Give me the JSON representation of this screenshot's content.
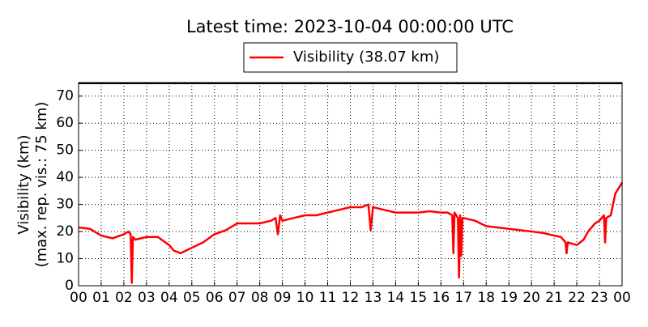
{
  "chart_data": {
    "type": "line",
    "title": "Latest time: 2023-10-04 00:00:00 UTC",
    "ylabel": [
      "Visibility (km)",
      "(max. rep. vis.: 75 km)"
    ],
    "legend": "upper center",
    "grid": true,
    "xlim": [
      0,
      24
    ],
    "ylim": [
      0,
      75
    ],
    "xticks": [
      {
        "value": 0,
        "label": "00"
      },
      {
        "value": 1,
        "label": "01"
      },
      {
        "value": 2,
        "label": "02"
      },
      {
        "value": 3,
        "label": "03"
      },
      {
        "value": 4,
        "label": "04"
      },
      {
        "value": 5,
        "label": "05"
      },
      {
        "value": 6,
        "label": "06"
      },
      {
        "value": 7,
        "label": "07"
      },
      {
        "value": 8,
        "label": "08"
      },
      {
        "value": 9,
        "label": "09"
      },
      {
        "value": 10,
        "label": "10"
      },
      {
        "value": 11,
        "label": "11"
      },
      {
        "value": 12,
        "label": "12"
      },
      {
        "value": 13,
        "label": "13"
      },
      {
        "value": 14,
        "label": "14"
      },
      {
        "value": 15,
        "label": "15"
      },
      {
        "value": 16,
        "label": "16"
      },
      {
        "value": 17,
        "label": "17"
      },
      {
        "value": 18,
        "label": "18"
      },
      {
        "value": 19,
        "label": "19"
      },
      {
        "value": 20,
        "label": "20"
      },
      {
        "value": 21,
        "label": "21"
      },
      {
        "value": 22,
        "label": "22"
      },
      {
        "value": 23,
        "label": "23"
      },
      {
        "value": 24,
        "label": "00"
      }
    ],
    "yticks": [
      0,
      10,
      20,
      30,
      40,
      50,
      60,
      70
    ],
    "series": [
      {
        "name": "Visibility (38.07 km)",
        "color": "#ff0000",
        "x": [
          0,
          0.5,
          1,
          1.5,
          2,
          2.2,
          2.3,
          2.35,
          2.4,
          2.5,
          3,
          3.5,
          4,
          4.2,
          4.5,
          5,
          5.5,
          6,
          6.5,
          7,
          7.5,
          8,
          8.5,
          8.7,
          8.8,
          8.9,
          9,
          9.5,
          10,
          10.5,
          11,
          11.5,
          12,
          12.5,
          12.8,
          12.9,
          13,
          13.5,
          14,
          14.5,
          15,
          15.5,
          16,
          16.3,
          16.5,
          16.55,
          16.6,
          16.75,
          16.8,
          16.85,
          16.9,
          16.95,
          17,
          17.5,
          18,
          18.5,
          19,
          19.5,
          20,
          20.5,
          21,
          21.3,
          21.5,
          21.55,
          21.6,
          22,
          22.3,
          22.5,
          22.8,
          23,
          23.2,
          23.25,
          23.3,
          23.5,
          23.7,
          24
        ],
        "values": [
          21.5,
          21,
          18.5,
          17.5,
          19,
          20,
          19,
          1,
          18,
          17,
          18,
          18,
          15,
          13,
          12,
          14,
          16,
          19,
          20.5,
          23,
          23,
          23,
          24,
          25,
          19,
          26,
          24,
          25,
          26,
          26,
          27,
          28,
          29,
          29,
          30,
          20.5,
          29,
          28,
          27,
          27,
          27,
          27.5,
          27,
          27,
          26,
          12,
          27,
          25,
          3,
          26,
          11,
          25,
          25,
          24,
          22,
          21.5,
          21,
          20.5,
          20,
          19.5,
          18.5,
          18,
          16,
          12,
          16,
          15,
          17,
          20,
          23,
          24,
          26,
          16,
          25,
          26,
          34,
          38.07
        ]
      }
    ]
  }
}
